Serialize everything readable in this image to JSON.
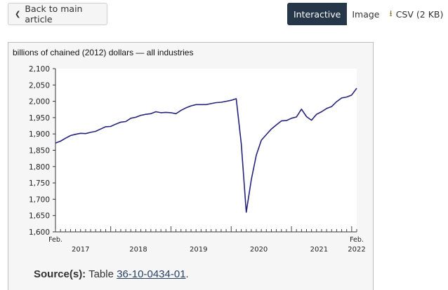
{
  "nav": {
    "back_label": "Back to main article",
    "back_icon": "chevron-left-icon",
    "tabs": [
      {
        "label": "Interactive",
        "active": true
      },
      {
        "label": "Image",
        "active": false
      },
      {
        "label": "CSV (2 KB)",
        "active": false,
        "icon": "download-icon"
      }
    ]
  },
  "chart_data": {
    "type": "line",
    "title": "",
    "ylabel": "billions of chained (2012) dollars — all industries",
    "xlabel": "",
    "ylim": [
      1600,
      2100
    ],
    "yticks": [
      1600,
      1650,
      1700,
      1750,
      1800,
      1850,
      1900,
      1950,
      2000,
      2050,
      2100
    ],
    "ytick_labels": [
      "1,600",
      "1,650",
      "1,700",
      "1,750",
      "1,800",
      "1,850",
      "1,900",
      "1,950",
      "2,000",
      "2,050",
      "2,100"
    ],
    "x_start": "2017-02",
    "x_end": "2022-02",
    "x_start_label": "Feb.",
    "x_end_label": "Feb.",
    "year_labels": [
      "2017",
      "2018",
      "2019",
      "2020",
      "2021",
      "2022"
    ],
    "grid": false,
    "line_color": "#25237a",
    "series": [
      {
        "x": [
          "2017-02",
          "2017-03",
          "2017-04",
          "2017-05",
          "2017-06",
          "2017-07",
          "2017-08",
          "2017-09",
          "2017-10",
          "2017-11",
          "2017-12",
          "2018-01",
          "2018-02",
          "2018-03",
          "2018-04",
          "2018-05",
          "2018-06",
          "2018-07",
          "2018-08",
          "2018-09",
          "2018-10",
          "2018-11",
          "2018-12",
          "2019-01",
          "2019-02",
          "2019-03",
          "2019-04",
          "2019-05",
          "2019-06",
          "2019-07",
          "2019-08",
          "2019-09",
          "2019-10",
          "2019-11",
          "2019-12",
          "2020-01",
          "2020-02",
          "2020-03",
          "2020-04",
          "2020-05",
          "2020-06",
          "2020-07",
          "2020-08",
          "2020-09",
          "2020-10",
          "2020-11",
          "2020-12",
          "2021-01",
          "2021-02",
          "2021-03",
          "2021-04",
          "2021-05",
          "2021-06",
          "2021-07",
          "2021-08",
          "2021-09",
          "2021-10",
          "2021-11",
          "2021-12",
          "2022-01",
          "2022-02"
        ],
        "values": [
          1872,
          1878,
          1887,
          1895,
          1899,
          1902,
          1901,
          1905,
          1908,
          1915,
          1922,
          1923,
          1930,
          1936,
          1938,
          1948,
          1951,
          1957,
          1960,
          1962,
          1968,
          1965,
          1966,
          1965,
          1962,
          1972,
          1980,
          1986,
          1990,
          1990,
          1990,
          1993,
          1996,
          1997,
          2000,
          2003,
          2008,
          1870,
          1660,
          1760,
          1835,
          1881,
          1898,
          1915,
          1928,
          1940,
          1941,
          1948,
          1952,
          1976,
          1953,
          1942,
          1960,
          1968,
          1978,
          1984,
          1999,
          2010,
          2013,
          2019,
          2040
        ]
      }
    ]
  },
  "source": {
    "label": "Source(s):",
    "text": "Table",
    "link": "36-10-0434-01",
    "end": "."
  }
}
